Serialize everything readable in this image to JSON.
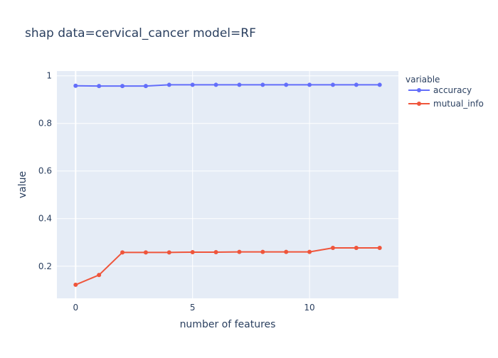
{
  "chart_data": {
    "type": "line",
    "title": "shap data=cervical_cancer model=RF",
    "xlabel": "number of features",
    "ylabel": "value",
    "x": [
      0,
      1,
      2,
      3,
      4,
      5,
      6,
      7,
      8,
      9,
      10,
      11,
      12,
      13
    ],
    "xlim": [
      -0.8,
      13.8
    ],
    "ylim": [
      0.065,
      1.02
    ],
    "xticks": [
      0,
      5,
      10
    ],
    "yticks": [
      0.2,
      0.4,
      0.6,
      0.8,
      1
    ],
    "xtick_labels": [
      "0",
      "5",
      "10"
    ],
    "ytick_labels": [
      "0.2",
      "0.4",
      "0.6",
      "0.8",
      "1"
    ],
    "grid": true,
    "legend": {
      "title": "variable",
      "placement": "top-right, outside plot"
    },
    "series": [
      {
        "name": "accuracy",
        "color": "#636efa",
        "values": [
          0.958,
          0.957,
          0.957,
          0.957,
          0.962,
          0.962,
          0.962,
          0.962,
          0.962,
          0.962,
          0.962,
          0.962,
          0.962,
          0.962
        ]
      },
      {
        "name": "mutual_info",
        "color": "#ef553b",
        "values": [
          0.122,
          0.163,
          0.258,
          0.258,
          0.258,
          0.259,
          0.259,
          0.26,
          0.26,
          0.26,
          0.26,
          0.277,
          0.277,
          0.277
        ]
      }
    ]
  }
}
